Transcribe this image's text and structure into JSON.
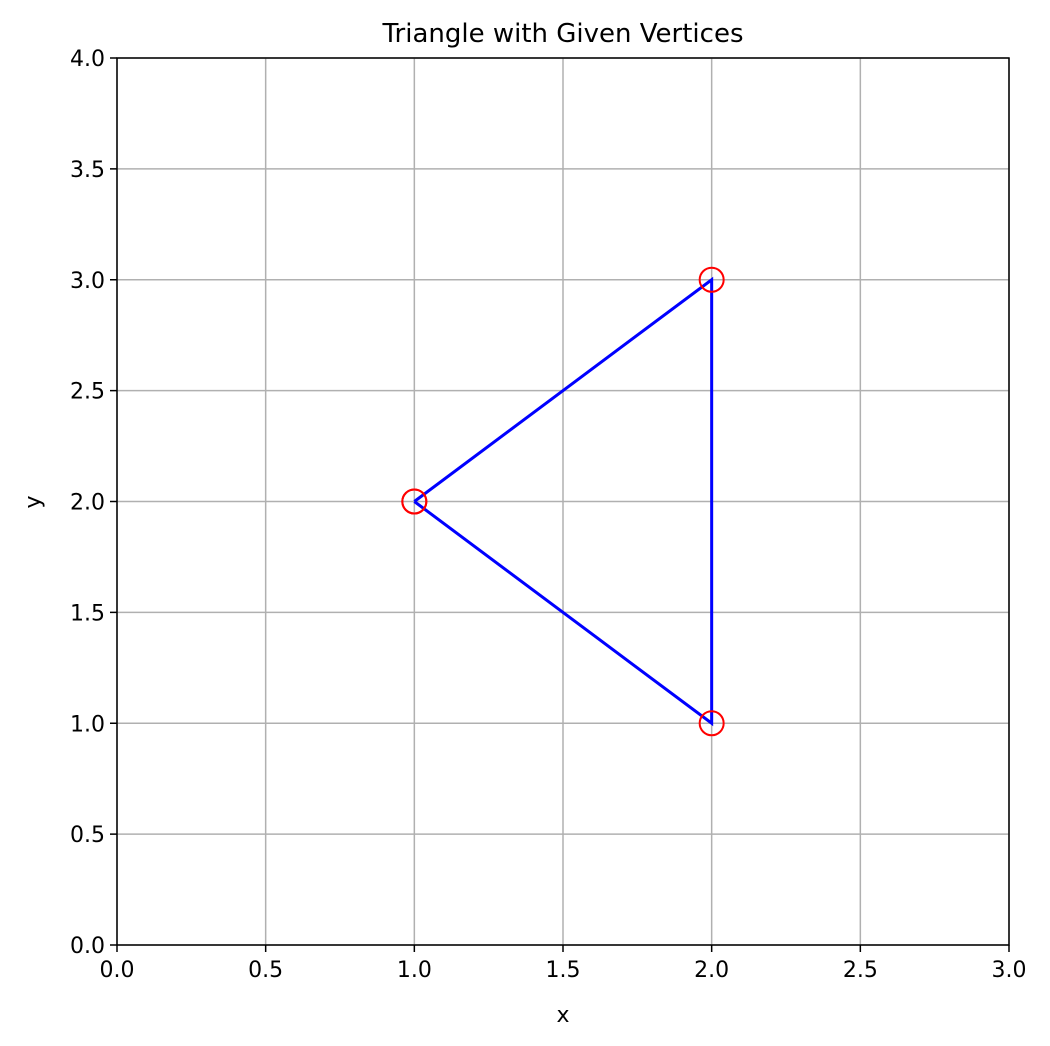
{
  "chart_data": {
    "type": "line",
    "title": "Triangle with Given Vertices",
    "xlabel": "x",
    "ylabel": "y",
    "xlim": [
      0,
      3
    ],
    "ylim": [
      0,
      4
    ],
    "xticks": [
      0.0,
      0.5,
      1.0,
      1.5,
      2.0,
      2.5,
      3.0
    ],
    "yticks": [
      0.0,
      0.5,
      1.0,
      1.5,
      2.0,
      2.5,
      3.0,
      3.5,
      4.0
    ],
    "xtick_labels": [
      "0.0",
      "0.5",
      "1.0",
      "1.5",
      "2.0",
      "2.5",
      "3.0"
    ],
    "ytick_labels": [
      "0.0",
      "0.5",
      "1.0",
      "1.5",
      "2.0",
      "2.5",
      "3.0",
      "3.5",
      "4.0"
    ],
    "grid": true,
    "series": [
      {
        "x": [
          1,
          2,
          2,
          1
        ],
        "y": [
          2,
          3,
          1,
          2
        ],
        "color": "#0000ff",
        "marker": "circle-open",
        "marker_color": "#ff0000"
      }
    ]
  },
  "colors": {
    "line": "#0000ff",
    "markers": "#ff0000",
    "grid": "#b0b0b0",
    "axes": "#000000"
  }
}
